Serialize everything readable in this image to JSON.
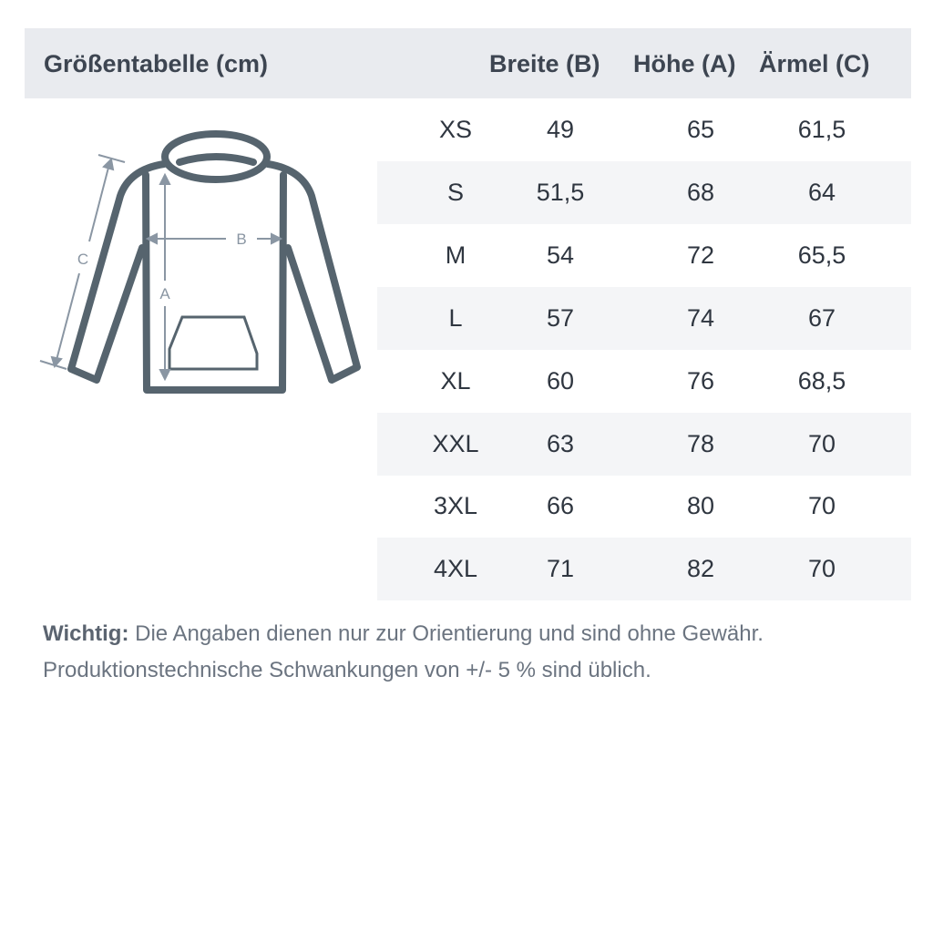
{
  "header": {
    "title": "Größentabelle (cm)",
    "columns": [
      "Breite (B)",
      "Höhe (A)",
      "Ärmel (C)"
    ]
  },
  "rows": [
    {
      "size": "XS",
      "breite": "49",
      "hoehe": "65",
      "aermel": "61,5"
    },
    {
      "size": "S",
      "breite": "51,5",
      "hoehe": "68",
      "aermel": "64"
    },
    {
      "size": "M",
      "breite": "54",
      "hoehe": "72",
      "aermel": "65,5"
    },
    {
      "size": "L",
      "breite": "57",
      "hoehe": "74",
      "aermel": "67"
    },
    {
      "size": "XL",
      "breite": "60",
      "hoehe": "76",
      "aermel": "68,5"
    },
    {
      "size": "XXL",
      "breite": "63",
      "hoehe": "78",
      "aermel": "70"
    },
    {
      "size": "3XL",
      "breite": "66",
      "hoehe": "80",
      "aermel": "70"
    },
    {
      "size": "4XL",
      "breite": "71",
      "hoehe": "82",
      "aermel": "70"
    }
  ],
  "diagram": {
    "label_a": "A",
    "label_b": "B",
    "label_c": "C",
    "icon": "hoodie-icon"
  },
  "note": {
    "bold": "Wichtig:",
    "line1": "Die Angaben dienen nur zur Orientierung und sind ohne Gewähr.",
    "line2": "Produktionstechnische Schwankungen von +/- 5 % sind üblich."
  },
  "colors": {
    "header_bg": "#e9ebef",
    "stripe": "#f4f5f7",
    "outline": "#56646e",
    "arrows": "#8a96a3"
  }
}
